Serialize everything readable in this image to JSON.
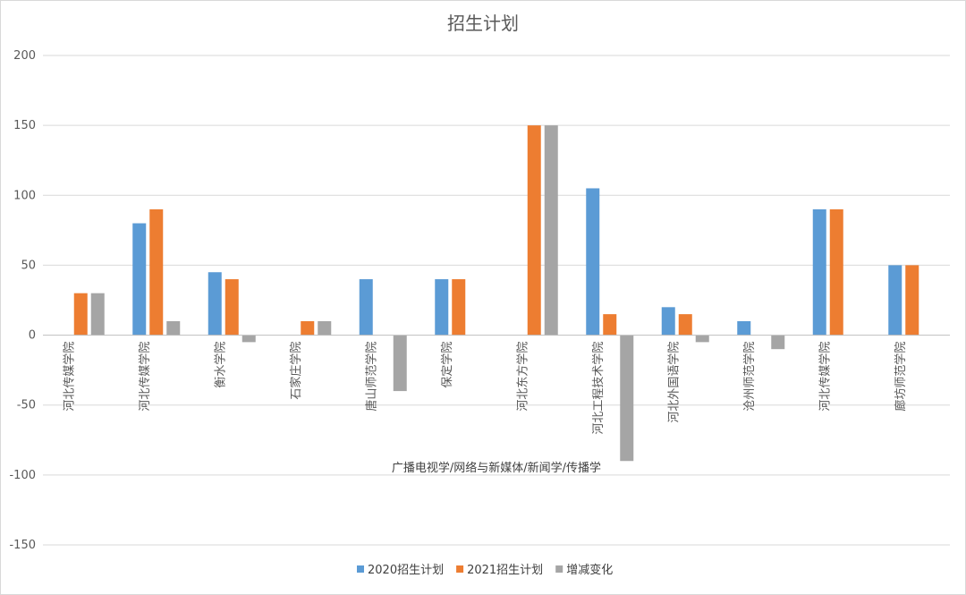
{
  "chart_data": {
    "type": "bar",
    "title": "招生计划",
    "xlabel": "广播电视学/网络与新媒体/新闻学/传播学",
    "ylabel": "",
    "ylim": [
      -150,
      200
    ],
    "yticks": [
      200,
      150,
      100,
      50,
      0,
      -50,
      -100,
      -150
    ],
    "grid": true,
    "legend_position": "bottom",
    "categories": [
      "河北传媒学院",
      "河北传媒学院",
      "衡水学院",
      "石家庄学院",
      "唐山师范学院",
      "保定学院",
      "河北东方学院",
      "河北工程技术学院",
      "河北外国语学院",
      "沧州师范学院",
      "河北传媒学院",
      "廊坊师范学院"
    ],
    "series": [
      {
        "name": "2020招生计划",
        "color": "#5b9bd5",
        "values": [
          null,
          80,
          45,
          null,
          40,
          40,
          null,
          105,
          20,
          10,
          90,
          50
        ]
      },
      {
        "name": "2021招生计划",
        "color": "#ed7d31",
        "values": [
          30,
          90,
          40,
          10,
          null,
          40,
          150,
          15,
          15,
          null,
          90,
          50
        ]
      },
      {
        "name": "增减变化",
        "color": "#a5a5a5",
        "values": [
          30,
          10,
          -5,
          10,
          -40,
          null,
          150,
          -90,
          -5,
          -10,
          null,
          null
        ]
      }
    ]
  }
}
